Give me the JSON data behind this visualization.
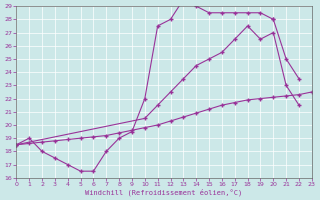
{
  "xlabel": "Windchill (Refroidissement éolien,°C)",
  "xlim": [
    0,
    23
  ],
  "ylim": [
    16,
    29
  ],
  "xticks": [
    0,
    1,
    2,
    3,
    4,
    5,
    6,
    7,
    8,
    9,
    10,
    11,
    12,
    13,
    14,
    15,
    16,
    17,
    18,
    19,
    20,
    21,
    22,
    23
  ],
  "yticks": [
    16,
    17,
    18,
    19,
    20,
    21,
    22,
    23,
    24,
    25,
    26,
    27,
    28,
    29
  ],
  "background_color": "#cce8e8",
  "line_color": "#993399",
  "curve1_x": [
    0,
    1,
    2,
    3,
    4,
    5,
    6,
    7,
    8,
    9,
    10,
    11,
    12,
    13,
    14,
    15,
    16,
    17,
    18,
    19,
    20
  ],
  "curve1_y": [
    18.5,
    19.0,
    18.0,
    17.5,
    17.0,
    16.5,
    16.5,
    18.0,
    19.0,
    19.5,
    22.0,
    27.5,
    28.0,
    29.5,
    29.0,
    28.5,
    28.5,
    28.5,
    28.5,
    28.5,
    28.0
  ],
  "curve2_x": [
    0,
    1,
    2,
    3,
    4,
    5,
    6,
    7,
    8,
    9,
    10,
    11,
    12,
    13,
    14,
    15,
    16,
    17,
    18,
    19,
    20,
    21,
    22,
    23
  ],
  "curve2_y": [
    18.5,
    18.6,
    18.7,
    18.8,
    18.9,
    19.0,
    19.1,
    19.2,
    19.4,
    19.6,
    19.8,
    20.0,
    20.3,
    20.6,
    20.9,
    21.2,
    21.5,
    21.7,
    21.9,
    22.0,
    22.1,
    22.2,
    22.3,
    22.5
  ],
  "curve3_x": [
    0,
    10,
    11,
    12,
    13,
    14,
    15,
    16,
    17,
    18,
    19,
    20,
    21,
    22
  ],
  "curve3_y": [
    18.5,
    20.5,
    21.5,
    22.5,
    23.5,
    24.5,
    25.0,
    25.5,
    26.5,
    27.5,
    26.5,
    27.0,
    23.0,
    21.5
  ],
  "curve4_x": [
    20,
    21,
    22
  ],
  "curve4_y": [
    28.0,
    25.0,
    23.5
  ]
}
